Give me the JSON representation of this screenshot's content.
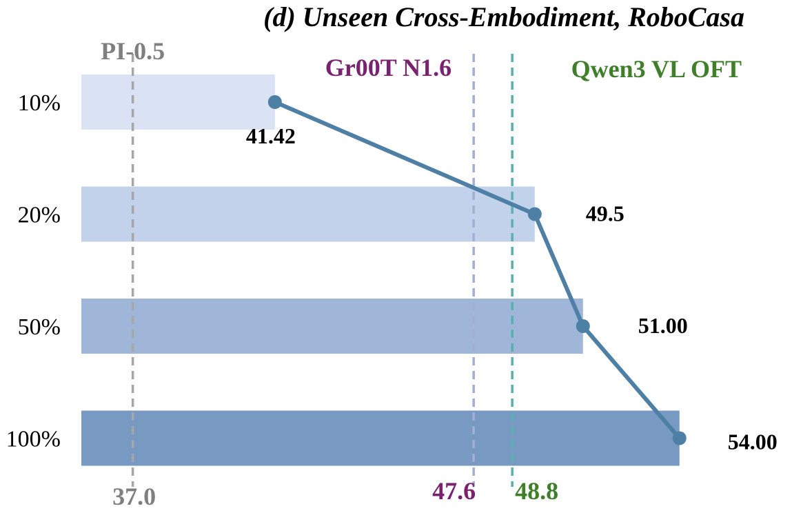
{
  "chart_data": {
    "type": "bar",
    "orientation": "horizontal",
    "title": "(d) Unseen Cross-Embodiment, RoboCasa",
    "categories": [
      "10%",
      "20%",
      "50%",
      "100%"
    ],
    "values": [
      41.42,
      49.5,
      51.0,
      54.0
    ],
    "value_labels": [
      "41.42",
      "49.5",
      "51.00",
      "54.00"
    ],
    "bar_colors": [
      "#dae3f3",
      "#c2d2ea",
      "#9fb6d8",
      "#7799c2"
    ],
    "line_overlay": {
      "color": "#4e7fa5"
    },
    "xlim": [
      35.4,
      57.5
    ],
    "grid": false,
    "reference_lines": [
      {
        "name": "PI-0.5",
        "value": 37.0,
        "value_label": "37.0",
        "color": "#7f7f7f",
        "line_color": "#a6a6a6"
      },
      {
        "name": "Gr00T N1.6",
        "value": 47.6,
        "value_label": "47.6",
        "color": "#782270",
        "line_color": "#a3aed6"
      },
      {
        "name": "Qwen3 VL OFT",
        "value": 48.8,
        "value_label": "48.8",
        "color": "#3f7f2a",
        "line_color": "#5ab0b0"
      }
    ]
  }
}
